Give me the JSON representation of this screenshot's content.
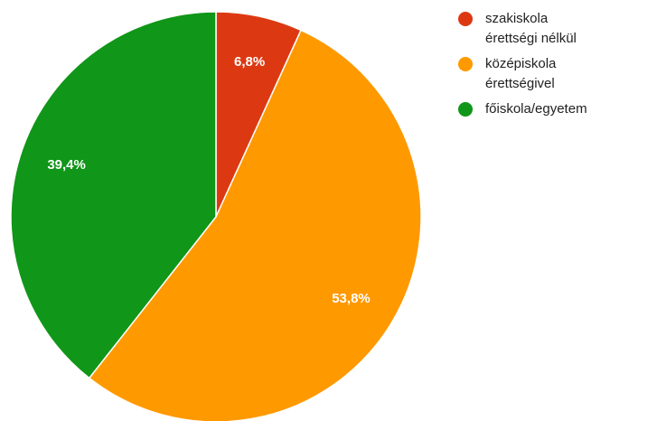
{
  "chart_data": {
    "type": "pie",
    "categories": [
      "szakiskola érettségi nélkül",
      "középiskola érettségivel",
      "főiskola/egyetem"
    ],
    "values": [
      6.8,
      53.8,
      39.4
    ],
    "value_labels": [
      "6,8%",
      "53,8%",
      "39,4%"
    ],
    "colors": [
      "#dc3912",
      "#ff9900",
      "#109618"
    ]
  }
}
